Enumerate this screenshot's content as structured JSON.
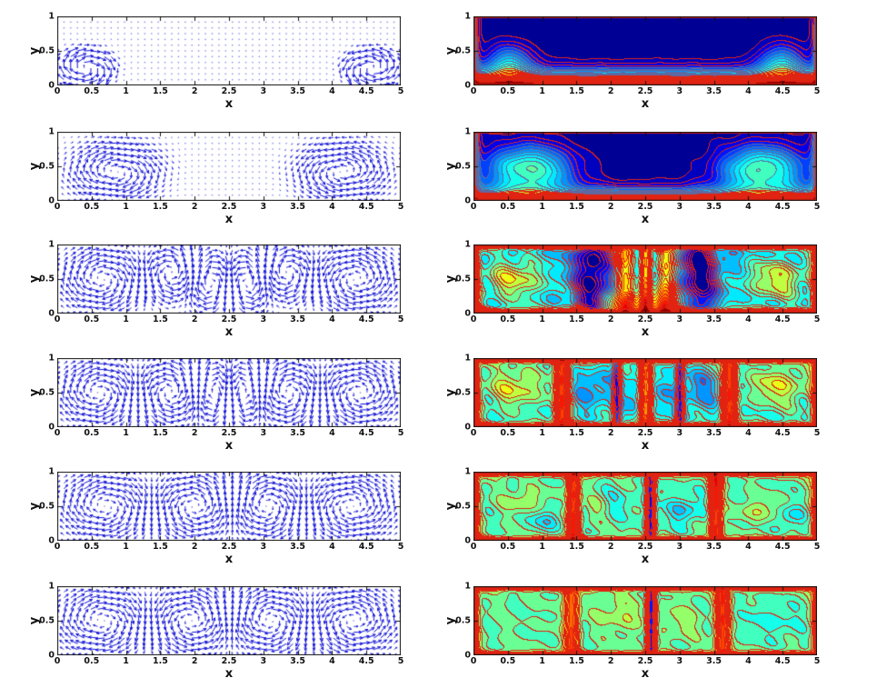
{
  "figure": {
    "kind": "scientific figure, 6 rows x 2 columns of MATLAB-style plots",
    "left_column_content": "velocity vector field (quiver plot, blue arrows)",
    "right_column_content": "temperature field (filled contours, jet colormap with red contour lines)",
    "background": "#ffffff"
  },
  "axes_defaults": {
    "xlabel": "x",
    "ylabel": "y",
    "xlim": [
      0,
      5
    ],
    "ylim": [
      0,
      1
    ],
    "xticks": [
      0,
      0.5,
      1,
      1.5,
      2,
      2.5,
      3,
      3.5,
      4,
      4.5,
      5
    ],
    "yticks": [
      0,
      0.5,
      1
    ]
  },
  "style": {
    "vector_color_rgb": [
      16,
      16,
      215
    ],
    "contour_line_rgb": [
      225,
      35,
      18
    ],
    "stratified_line_rgb": [
      95,
      105,
      160
    ],
    "frame_color": "#111111",
    "contour_inner_frame": "#cc2211",
    "cold_fill": "#000080",
    "hot_fill": "#800000"
  },
  "chart_data": {
    "type": [
      "quiver",
      "contourf"
    ],
    "levels": 24,
    "panels": [
      {
        "row": 1,
        "col": 1,
        "type": "quiver",
        "description": "weak flow: two small counter-rotating vortices near bottom corners at x=0.4 and x=4.6, near-stagnant interior (dots)",
        "vortices": [
          {
            "cx": 0.42,
            "cy": 0.25,
            "s": -1.0,
            "rx": 0.3,
            "ry": 0.2
          },
          {
            "cx": 4.58,
            "cy": 0.25,
            "s": 1.0,
            "rx": 0.3,
            "ry": 0.2
          },
          {
            "cx": 2.5,
            "cy": 0.55,
            "s": -0.055,
            "rx": 2.4,
            "ry": 0.5
          }
        ]
      },
      {
        "row": 1,
        "col": 2,
        "type": "contourf",
        "graylines": true,
        "wiggle": 0.004,
        "description": "stable stratification: hot (red) bottom boundary layer, cold (dark blue) upper region, isotherms bulge upward near x=0.5 and x=4.5",
        "field_terms": [
          {
            "t": "edge",
            "e": "bottom",
            "a": 1.06,
            "d": 0.17,
            "p": 1.4
          },
          {
            "t": "edge",
            "e": "left",
            "a": 0.45,
            "d": 0.045
          },
          {
            "t": "edge",
            "e": "right",
            "a": 0.45,
            "d": 0.045
          },
          {
            "t": "blob",
            "cx": 0.52,
            "cy": 0.3,
            "rx": 0.34,
            "ry": 0.3,
            "a": 0.32
          },
          {
            "t": "blob",
            "cx": 4.48,
            "cy": 0.3,
            "rx": 0.34,
            "ry": 0.3,
            "a": 0.32
          }
        ]
      },
      {
        "row": 2,
        "col": 1,
        "type": "quiver",
        "description": "two large counter-rotating convection cells centered near x=0.85 and x=4.15, quiescent core region 1.5<x<3.5",
        "vortices": [
          {
            "cx": 0.85,
            "cy": 0.42,
            "s": -1.0,
            "rx": 0.58,
            "ry": 0.34
          },
          {
            "cx": 4.15,
            "cy": 0.42,
            "s": 1.0,
            "rx": 0.58,
            "ry": 0.34
          },
          {
            "cx": 2.5,
            "cy": 0.3,
            "s": -0.04,
            "rx": 1.5,
            "ry": 0.5
          }
        ]
      },
      {
        "row": 2,
        "col": 2,
        "type": "contourf",
        "graylines": true,
        "wiggle": 0.008,
        "description": "two warm plumes with green/cyan cores near x=0.8 and x=4.2 reaching the top, stratified hot bottom layer in the middle, cold dark-blue top center",
        "field_terms": [
          {
            "t": "edge",
            "e": "bottom",
            "a": 1.05,
            "d": 0.12,
            "p": 1.2
          },
          {
            "t": "edge",
            "e": "left",
            "a": 0.55,
            "d": 0.05
          },
          {
            "t": "edge",
            "e": "right",
            "a": 0.55,
            "d": 0.05
          },
          {
            "t": "blob",
            "cx": 0.8,
            "cy": 0.45,
            "rx": 0.62,
            "ry": 0.36,
            "a": 0.5
          },
          {
            "t": "blob",
            "cx": 4.2,
            "cy": 0.45,
            "rx": 0.62,
            "ry": 0.36,
            "a": 0.5
          },
          {
            "t": "blob",
            "cx": 0.75,
            "cy": 0.38,
            "rx": 0.3,
            "ry": 0.18,
            "a": -0.06
          },
          {
            "t": "blob",
            "cx": 4.25,
            "cy": 0.38,
            "rx": 0.3,
            "ry": 0.18,
            "a": -0.06
          }
        ]
      },
      {
        "row": 3,
        "col": 1,
        "type": "quiver",
        "description": "six convection cells filling the cavity: large end vortices at x=0.65 and x=4.35, smaller alternating vortices near x=1.65, 2.25, 2.75, 3.35",
        "vortices": [
          {
            "cx": 0.65,
            "cy": 0.5,
            "s": -1.0,
            "rx": 0.52,
            "ry": 0.4
          },
          {
            "cx": 1.65,
            "cy": 0.58,
            "s": 0.8,
            "rx": 0.36,
            "ry": 0.34
          },
          {
            "cx": 2.25,
            "cy": 0.45,
            "s": -0.9,
            "rx": 0.32,
            "ry": 0.38
          },
          {
            "cx": 2.75,
            "cy": 0.45,
            "s": 0.9,
            "rx": 0.32,
            "ry": 0.38
          },
          {
            "cx": 3.35,
            "cy": 0.58,
            "s": -0.8,
            "rx": 0.36,
            "ry": 0.34
          },
          {
            "cx": 4.35,
            "cy": 0.5,
            "s": 1.0,
            "rx": 0.52,
            "ry": 0.4
          }
        ]
      },
      {
        "row": 3,
        "col": 2,
        "type": "contourf",
        "graylines": false,
        "wiggle": 0.035,
        "description": "unsteady mixing: well-mixed green cores in end cells, cold blue downwellings near x=1.7 and x=3.3, hot rising plumes near x=2.2, 2.5, 2.8, thin hot layers on all walls",
        "field_terms": [
          {
            "t": "const",
            "a": 0.3
          },
          {
            "t": "edge",
            "e": "bottom",
            "a": 0.72,
            "d": 0.045,
            "p": 1
          },
          {
            "t": "edge",
            "e": "top",
            "a": 0.55,
            "d": 0.035,
            "p": 1
          },
          {
            "t": "edge",
            "e": "left",
            "a": 0.6,
            "d": 0.055
          },
          {
            "t": "edge",
            "e": "right",
            "a": 0.6,
            "d": 0.055
          },
          {
            "t": "blob",
            "cx": 0.6,
            "cy": 0.5,
            "rx": 0.5,
            "ry": 0.33,
            "a": 0.27
          },
          {
            "t": "blob",
            "cx": 4.4,
            "cy": 0.5,
            "rx": 0.5,
            "ry": 0.33,
            "a": 0.27
          },
          {
            "t": "plume",
            "cx": 1.72,
            "w": 0.16,
            "a": -0.3
          },
          {
            "t": "plume",
            "cx": 3.28,
            "w": 0.16,
            "a": -0.3
          },
          {
            "t": "plume",
            "cx": 2.2,
            "w": 0.09,
            "a": 0.32
          },
          {
            "t": "plume",
            "cx": 2.5,
            "w": 0.06,
            "a": 0.38
          },
          {
            "t": "plume",
            "cx": 2.8,
            "w": 0.09,
            "a": 0.32
          },
          {
            "t": "blob",
            "cx": 2.5,
            "cy": 0.15,
            "rx": 0.8,
            "ry": 0.18,
            "a": 0.25
          }
        ]
      },
      {
        "row": 4,
        "col": 1,
        "type": "quiver",
        "description": "six alternating convection rolls: centers near x=0.6, 1.6, 2.3, 2.7, 3.4, 4.4 at mid-height",
        "vortices": [
          {
            "cx": 0.6,
            "cy": 0.5,
            "s": -1.0,
            "rx": 0.5,
            "ry": 0.4
          },
          {
            "cx": 1.62,
            "cy": 0.5,
            "s": 1.0,
            "rx": 0.4,
            "ry": 0.4
          },
          {
            "cx": 2.3,
            "cy": 0.5,
            "s": -0.85,
            "rx": 0.28,
            "ry": 0.4
          },
          {
            "cx": 2.7,
            "cy": 0.5,
            "s": 0.85,
            "rx": 0.28,
            "ry": 0.4
          },
          {
            "cx": 3.38,
            "cy": 0.5,
            "s": -1.0,
            "rx": 0.4,
            "ry": 0.4
          },
          {
            "cx": 4.4,
            "cy": 0.5,
            "s": 1.0,
            "rx": 0.5,
            "ry": 0.4
          }
        ]
      },
      {
        "row": 4,
        "col": 2,
        "type": "contourf",
        "graylines": false,
        "wiggle": 0.03,
        "description": "mixed cells: green cores at ends, cyan/light-blue cores near x=1.7, 2.3, 2.75, 3.3, hot plume walls near x=1.3, 2.5, 3.7, cold slivers near x=2.1 and 3.0, hot wall layers",
        "field_terms": [
          {
            "t": "const",
            "a": 0.4
          },
          {
            "t": "edge",
            "e": "bottom",
            "a": 0.62,
            "d": 0.035,
            "p": 1
          },
          {
            "t": "edge",
            "e": "top",
            "a": 0.58,
            "d": 0.03,
            "p": 1
          },
          {
            "t": "edge",
            "e": "left",
            "a": 0.58,
            "d": 0.05
          },
          {
            "t": "edge",
            "e": "right",
            "a": 0.58,
            "d": 0.05
          },
          {
            "t": "blob",
            "cx": 0.62,
            "cy": 0.58,
            "rx": 0.45,
            "ry": 0.3,
            "a": 0.17
          },
          {
            "t": "blob",
            "cx": 4.42,
            "cy": 0.6,
            "rx": 0.45,
            "ry": 0.3,
            "a": 0.17
          },
          {
            "t": "blob",
            "cx": 1.72,
            "cy": 0.55,
            "rx": 0.3,
            "ry": 0.3,
            "a": -0.13
          },
          {
            "t": "blob",
            "cx": 3.3,
            "cy": 0.55,
            "rx": 0.3,
            "ry": 0.3,
            "a": -0.13
          },
          {
            "t": "blob",
            "cx": 2.3,
            "cy": 0.45,
            "rx": 0.18,
            "ry": 0.3,
            "a": -0.09
          },
          {
            "t": "blob",
            "cx": 2.75,
            "cy": 0.45,
            "rx": 0.18,
            "ry": 0.3,
            "a": -0.09
          },
          {
            "t": "plume",
            "cx": 1.28,
            "w": 0.07,
            "a": 0.42
          },
          {
            "t": "plume",
            "cx": 2.5,
            "w": 0.06,
            "a": 0.38
          },
          {
            "t": "plume",
            "cx": 3.72,
            "w": 0.07,
            "a": 0.42
          },
          {
            "t": "plume",
            "cx": 2.08,
            "w": 0.045,
            "a": -0.22
          },
          {
            "t": "plume",
            "cx": 3.0,
            "w": 0.045,
            "a": -0.22
          }
        ]
      },
      {
        "row": 5,
        "col": 1,
        "type": "quiver",
        "description": "four large counter-rotating rolls centered near x=0.7, 2.0, 3.05, 4.3; strong vertical jets at cell boundaries x=1.45, 2.55, 3.55",
        "vortices": [
          {
            "cx": 0.7,
            "cy": 0.5,
            "s": -1.0,
            "rx": 0.6,
            "ry": 0.42
          },
          {
            "cx": 2.0,
            "cy": 0.5,
            "s": 1.0,
            "rx": 0.55,
            "ry": 0.42
          },
          {
            "cx": 3.05,
            "cy": 0.5,
            "s": -1.0,
            "rx": 0.5,
            "ry": 0.42
          },
          {
            "cx": 4.28,
            "cy": 0.5,
            "s": 1.0,
            "rx": 0.58,
            "ry": 0.42
          }
        ]
      },
      {
        "row": 5,
        "col": 2,
        "type": "contourf",
        "graylines": false,
        "wiggle": 0.025,
        "description": "well-mixed teal interior with green and cyan patches, hot rising plumes at x=1.45 and x=3.5, cold sinking plume at x=2.55, thin hot layers on all walls",
        "field_terms": [
          {
            "t": "const",
            "a": 0.45
          },
          {
            "t": "edge",
            "e": "bottom",
            "a": 0.6,
            "d": 0.03,
            "p": 1
          },
          {
            "t": "edge",
            "e": "top",
            "a": 0.58,
            "d": 0.028,
            "p": 1
          },
          {
            "t": "edge",
            "e": "left",
            "a": 0.55,
            "d": 0.045
          },
          {
            "t": "edge",
            "e": "right",
            "a": 0.55,
            "d": 0.045
          },
          {
            "t": "plume",
            "cx": 1.45,
            "w": 0.06,
            "a": 0.4
          },
          {
            "t": "plume",
            "cx": 3.52,
            "w": 0.06,
            "a": 0.4
          },
          {
            "t": "plume",
            "cx": 2.57,
            "w": 0.05,
            "a": -0.33
          },
          {
            "t": "blob",
            "cx": 0.72,
            "cy": 0.6,
            "rx": 0.3,
            "ry": 0.17,
            "a": 0.09
          },
          {
            "t": "blob",
            "cx": 1.05,
            "cy": 0.3,
            "rx": 0.22,
            "ry": 0.15,
            "a": -0.1
          },
          {
            "t": "blob",
            "cx": 2.0,
            "cy": 0.55,
            "rx": 0.3,
            "ry": 0.22,
            "a": -0.07
          },
          {
            "t": "blob",
            "cx": 1.8,
            "cy": 0.5,
            "rx": 0.2,
            "ry": 0.2,
            "a": 0.08
          },
          {
            "t": "blob",
            "cx": 3.05,
            "cy": 0.45,
            "rx": 0.26,
            "ry": 0.2,
            "a": -0.12
          },
          {
            "t": "blob",
            "cx": 4.15,
            "cy": 0.45,
            "rx": 0.28,
            "ry": 0.18,
            "a": 0.09
          },
          {
            "t": "blob",
            "cx": 4.6,
            "cy": 0.35,
            "rx": 0.2,
            "ry": 0.15,
            "a": -0.1
          }
        ]
      },
      {
        "row": 6,
        "col": 1,
        "type": "quiver",
        "description": "four large counter-rotating rolls centered near x=0.65, 1.95, 3.1, 4.3; jets at boundaries x=1.4, 2.55, 3.65",
        "vortices": [
          {
            "cx": 0.65,
            "cy": 0.5,
            "s": -1.0,
            "rx": 0.6,
            "ry": 0.42
          },
          {
            "cx": 1.95,
            "cy": 0.5,
            "s": 1.0,
            "rx": 0.55,
            "ry": 0.42
          },
          {
            "cx": 3.1,
            "cy": 0.5,
            "s": -1.0,
            "rx": 0.55,
            "ry": 0.42
          },
          {
            "cx": 4.3,
            "cy": 0.5,
            "s": 1.0,
            "rx": 0.58,
            "ry": 0.42
          }
        ]
      },
      {
        "row": 6,
        "col": 2,
        "type": "contourf",
        "graylines": false,
        "wiggle": 0.02,
        "description": "nearly uniform teal cells, orange rising plumes at x=1.4 and x=3.6, cold blue sinking plume at x=2.58, cyan cell on the right, thin hot layers on all walls",
        "field_terms": [
          {
            "t": "const",
            "a": 0.46
          },
          {
            "t": "edge",
            "e": "bottom",
            "a": 0.6,
            "d": 0.028,
            "p": 1
          },
          {
            "t": "edge",
            "e": "top",
            "a": 0.58,
            "d": 0.026,
            "p": 1
          },
          {
            "t": "edge",
            "e": "left",
            "a": 0.55,
            "d": 0.04
          },
          {
            "t": "edge",
            "e": "right",
            "a": 0.55,
            "d": 0.04
          },
          {
            "t": "plume",
            "cx": 1.42,
            "w": 0.07,
            "a": 0.33
          },
          {
            "t": "plume",
            "cx": 3.62,
            "w": 0.07,
            "a": 0.36
          },
          {
            "t": "plume",
            "cx": 2.58,
            "w": 0.05,
            "a": -0.35
          },
          {
            "t": "blob",
            "cx": 2.15,
            "cy": 0.6,
            "rx": 0.35,
            "ry": 0.25,
            "a": 0.08
          },
          {
            "t": "blob",
            "cx": 3.0,
            "cy": 0.5,
            "rx": 0.3,
            "ry": 0.25,
            "a": 0.06
          },
          {
            "t": "blob",
            "cx": 4.35,
            "cy": 0.5,
            "rx": 0.5,
            "ry": 0.3,
            "a": -0.06
          }
        ]
      }
    ]
  }
}
